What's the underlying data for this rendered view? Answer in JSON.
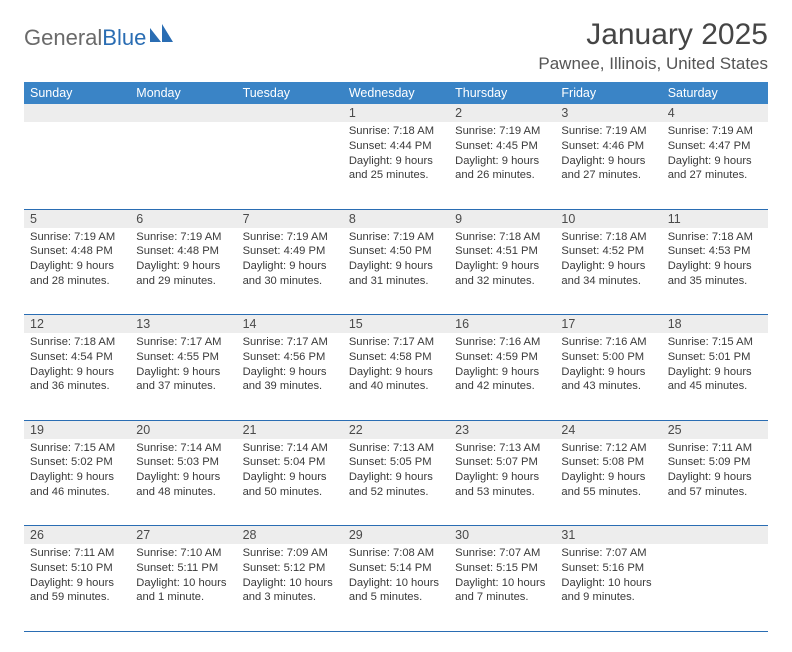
{
  "logo": {
    "word1": "General",
    "word2": "Blue"
  },
  "title": "January 2025",
  "location": "Pawnee, Illinois, United States",
  "colors": {
    "header_bg": "#3a84c6",
    "header_text": "#ffffff",
    "daynum_bg": "#ededed",
    "rule": "#2a6db3",
    "text": "#333333",
    "title_text": "#454545"
  },
  "typography": {
    "title_fontsize": 30,
    "location_fontsize": 17,
    "header_fontsize": 12.5,
    "body_fontsize": 11.2
  },
  "day_headers": [
    "Sunday",
    "Monday",
    "Tuesday",
    "Wednesday",
    "Thursday",
    "Friday",
    "Saturday"
  ],
  "weeks": [
    [
      null,
      null,
      null,
      {
        "n": "1",
        "sr": "7:18 AM",
        "ss": "4:44 PM",
        "dl": "9 hours and 25 minutes."
      },
      {
        "n": "2",
        "sr": "7:19 AM",
        "ss": "4:45 PM",
        "dl": "9 hours and 26 minutes."
      },
      {
        "n": "3",
        "sr": "7:19 AM",
        "ss": "4:46 PM",
        "dl": "9 hours and 27 minutes."
      },
      {
        "n": "4",
        "sr": "7:19 AM",
        "ss": "4:47 PM",
        "dl": "9 hours and 27 minutes."
      }
    ],
    [
      {
        "n": "5",
        "sr": "7:19 AM",
        "ss": "4:48 PM",
        "dl": "9 hours and 28 minutes."
      },
      {
        "n": "6",
        "sr": "7:19 AM",
        "ss": "4:48 PM",
        "dl": "9 hours and 29 minutes."
      },
      {
        "n": "7",
        "sr": "7:19 AM",
        "ss": "4:49 PM",
        "dl": "9 hours and 30 minutes."
      },
      {
        "n": "8",
        "sr": "7:19 AM",
        "ss": "4:50 PM",
        "dl": "9 hours and 31 minutes."
      },
      {
        "n": "9",
        "sr": "7:18 AM",
        "ss": "4:51 PM",
        "dl": "9 hours and 32 minutes."
      },
      {
        "n": "10",
        "sr": "7:18 AM",
        "ss": "4:52 PM",
        "dl": "9 hours and 34 minutes."
      },
      {
        "n": "11",
        "sr": "7:18 AM",
        "ss": "4:53 PM",
        "dl": "9 hours and 35 minutes."
      }
    ],
    [
      {
        "n": "12",
        "sr": "7:18 AM",
        "ss": "4:54 PM",
        "dl": "9 hours and 36 minutes."
      },
      {
        "n": "13",
        "sr": "7:17 AM",
        "ss": "4:55 PM",
        "dl": "9 hours and 37 minutes."
      },
      {
        "n": "14",
        "sr": "7:17 AM",
        "ss": "4:56 PM",
        "dl": "9 hours and 39 minutes."
      },
      {
        "n": "15",
        "sr": "7:17 AM",
        "ss": "4:58 PM",
        "dl": "9 hours and 40 minutes."
      },
      {
        "n": "16",
        "sr": "7:16 AM",
        "ss": "4:59 PM",
        "dl": "9 hours and 42 minutes."
      },
      {
        "n": "17",
        "sr": "7:16 AM",
        "ss": "5:00 PM",
        "dl": "9 hours and 43 minutes."
      },
      {
        "n": "18",
        "sr": "7:15 AM",
        "ss": "5:01 PM",
        "dl": "9 hours and 45 minutes."
      }
    ],
    [
      {
        "n": "19",
        "sr": "7:15 AM",
        "ss": "5:02 PM",
        "dl": "9 hours and 46 minutes."
      },
      {
        "n": "20",
        "sr": "7:14 AM",
        "ss": "5:03 PM",
        "dl": "9 hours and 48 minutes."
      },
      {
        "n": "21",
        "sr": "7:14 AM",
        "ss": "5:04 PM",
        "dl": "9 hours and 50 minutes."
      },
      {
        "n": "22",
        "sr": "7:13 AM",
        "ss": "5:05 PM",
        "dl": "9 hours and 52 minutes."
      },
      {
        "n": "23",
        "sr": "7:13 AM",
        "ss": "5:07 PM",
        "dl": "9 hours and 53 minutes."
      },
      {
        "n": "24",
        "sr": "7:12 AM",
        "ss": "5:08 PM",
        "dl": "9 hours and 55 minutes."
      },
      {
        "n": "25",
        "sr": "7:11 AM",
        "ss": "5:09 PM",
        "dl": "9 hours and 57 minutes."
      }
    ],
    [
      {
        "n": "26",
        "sr": "7:11 AM",
        "ss": "5:10 PM",
        "dl": "9 hours and 59 minutes."
      },
      {
        "n": "27",
        "sr": "7:10 AM",
        "ss": "5:11 PM",
        "dl": "10 hours and 1 minute."
      },
      {
        "n": "28",
        "sr": "7:09 AM",
        "ss": "5:12 PM",
        "dl": "10 hours and 3 minutes."
      },
      {
        "n": "29",
        "sr": "7:08 AM",
        "ss": "5:14 PM",
        "dl": "10 hours and 5 minutes."
      },
      {
        "n": "30",
        "sr": "7:07 AM",
        "ss": "5:15 PM",
        "dl": "10 hours and 7 minutes."
      },
      {
        "n": "31",
        "sr": "7:07 AM",
        "ss": "5:16 PM",
        "dl": "10 hours and 9 minutes."
      },
      null
    ]
  ],
  "labels": {
    "sunrise": "Sunrise:",
    "sunset": "Sunset:",
    "daylight": "Daylight:"
  }
}
